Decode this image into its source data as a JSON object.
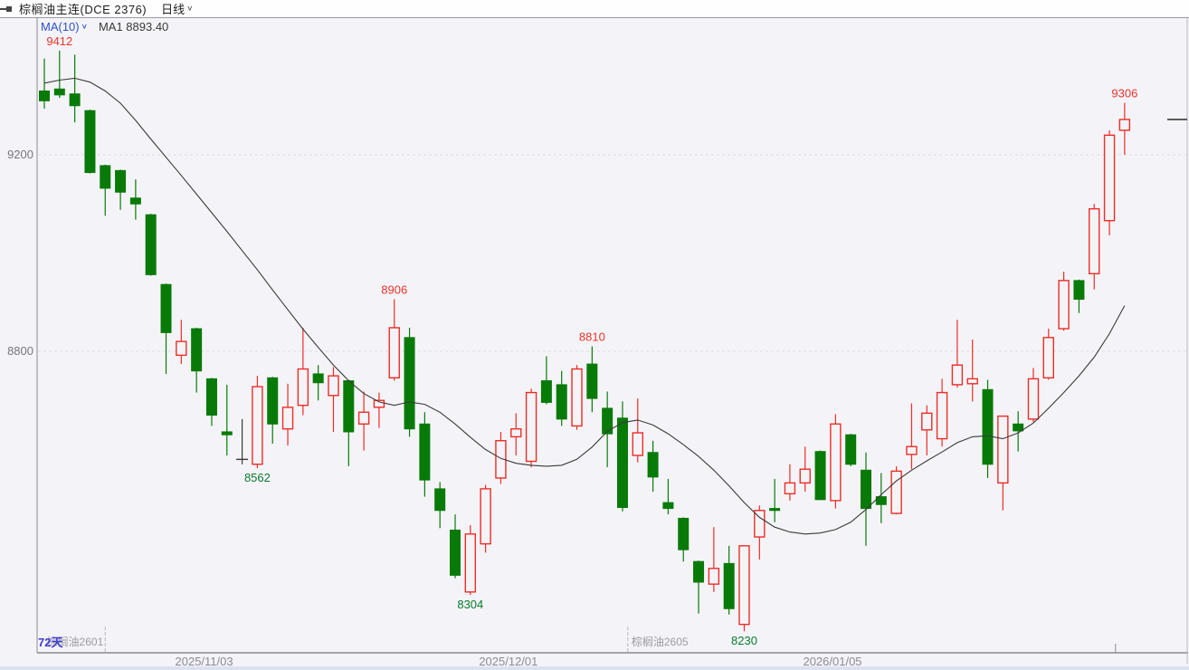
{
  "header": {
    "instrument_title": "棕榈油主连(DCE 2376)",
    "period_label": "日线",
    "chevron_glyph": "∨"
  },
  "legend": {
    "ma_name": "MA(10)",
    "ma_value_label": "MA1 8893.40"
  },
  "y_axis": {
    "labels": [
      {
        "text": "9200",
        "price": 9200
      },
      {
        "text": "8800",
        "price": 8800
      }
    ]
  },
  "x_axis": {
    "dates": [
      {
        "label": "2025/11/03",
        "index": 10.5
      },
      {
        "label": "2025/12/01",
        "index": 30.5
      },
      {
        "label": "2026/01/05",
        "index": 51.8
      }
    ],
    "minor_tick_index": 70.4
  },
  "annotations": {
    "duration_label": "72天",
    "contract_markers": [
      {
        "label": "棕榈油2601",
        "index": 4.0,
        "side": "left"
      },
      {
        "label": "棕榈油2605",
        "index": 38.35,
        "side": "right"
      }
    ],
    "extreme_labels": [
      {
        "text": "9412",
        "candle": 1,
        "side": "above"
      },
      {
        "text": "8562",
        "candle": 14,
        "side": "below"
      },
      {
        "text": "8906",
        "candle": 23,
        "side": "above"
      },
      {
        "text": "8304",
        "candle": 28,
        "side": "below"
      },
      {
        "text": "8810",
        "candle": 36,
        "side": "above"
      },
      {
        "text": "8230",
        "candle": 46,
        "side": "below"
      },
      {
        "text": "9306",
        "candle": 71,
        "side": "above"
      }
    ]
  },
  "colors": {
    "up": "#ee2c26",
    "down": "#087a08",
    "neutral": "#3a3a3a",
    "ma_line": "#3a3a3a",
    "label_up": "#e8342a",
    "label_down": "#0a7a2a",
    "grid": "#dcdce2",
    "axis": "#8a8a92",
    "tick_text": "#75757d",
    "contract_text": "#9a9aa0",
    "duration_text": "#3c3ccc",
    "background": "#f4f4f8",
    "last_price_dash": "#3a3a3a"
  },
  "chart_data": {
    "type": "candlestick",
    "title": "棕榈油主连(DCE 2376) 日线",
    "period": "daily",
    "visible_days": 72,
    "ylim": [
      8186,
      9478
    ],
    "grid": "dashed horizontal at 9200 and 8800",
    "legend_position": "top-left",
    "ma": {
      "name": "MA(10)",
      "current_display": "8893.40"
    },
    "ohlc": [
      [
        9330,
        9396,
        9294,
        9310
      ],
      [
        9334,
        9412,
        9316,
        9322
      ],
      [
        9324,
        9404,
        9266,
        9300
      ],
      [
        9290,
        9292,
        9162,
        9164
      ],
      [
        9178,
        9180,
        9076,
        9132
      ],
      [
        9168,
        9170,
        9088,
        9124
      ],
      [
        9112,
        9150,
        9068,
        9100
      ],
      [
        9078,
        9080,
        8954,
        8956
      ],
      [
        8936,
        8938,
        8754,
        8838
      ],
      [
        8792,
        8864,
        8774,
        8820
      ],
      [
        8846,
        8848,
        8716,
        8760
      ],
      [
        8744,
        8746,
        8648,
        8670
      ],
      [
        8636,
        8732,
        8588,
        8630
      ],
      [
        8580,
        8662,
        8570,
        8580
      ],
      [
        8570,
        8750,
        8562,
        8728
      ],
      [
        8746,
        8748,
        8612,
        8652
      ],
      [
        8642,
        8734,
        8608,
        8686
      ],
      [
        8690,
        8848,
        8670,
        8764
      ],
      [
        8754,
        8772,
        8700,
        8736
      ],
      [
        8710,
        8768,
        8636,
        8750
      ],
      [
        8740,
        8742,
        8566,
        8636
      ],
      [
        8652,
        8718,
        8598,
        8676
      ],
      [
        8686,
        8716,
        8644,
        8700
      ],
      [
        8746,
        8906,
        8740,
        8848
      ],
      [
        8828,
        8848,
        8626,
        8642
      ],
      [
        8652,
        8676,
        8504,
        8538
      ],
      [
        8520,
        8534,
        8440,
        8476
      ],
      [
        8436,
        8468,
        8338,
        8344
      ],
      [
        8310,
        8446,
        8304,
        8428
      ],
      [
        8408,
        8528,
        8390,
        8520
      ],
      [
        8542,
        8636,
        8530,
        8618
      ],
      [
        8626,
        8674,
        8588,
        8642
      ],
      [
        8576,
        8724,
        8564,
        8716
      ],
      [
        8740,
        8790,
        8692,
        8696
      ],
      [
        8732,
        8760,
        8648,
        8662
      ],
      [
        8648,
        8772,
        8640,
        8764
      ],
      [
        8774,
        8810,
        8676,
        8704
      ],
      [
        8684,
        8718,
        8564,
        8632
      ],
      [
        8664,
        8698,
        8474,
        8482
      ],
      [
        8588,
        8704,
        8574,
        8634
      ],
      [
        8594,
        8618,
        8514,
        8544
      ],
      [
        8492,
        8540,
        8468,
        8480
      ],
      [
        8460,
        8462,
        8372,
        8396
      ],
      [
        8372,
        8374,
        8266,
        8330
      ],
      [
        8326,
        8442,
        8310,
        8358
      ],
      [
        8368,
        8404,
        8264,
        8276
      ],
      [
        8244,
        8404,
        8230,
        8404
      ],
      [
        8422,
        8486,
        8376,
        8476
      ],
      [
        8480,
        8540,
        8452,
        8476
      ],
      [
        8510,
        8570,
        8496,
        8532
      ],
      [
        8532,
        8606,
        8514,
        8560
      ],
      [
        8596,
        8598,
        8498,
        8498
      ],
      [
        8496,
        8672,
        8480,
        8652
      ],
      [
        8630,
        8632,
        8566,
        8570
      ],
      [
        8558,
        8594,
        8404,
        8480
      ],
      [
        8504,
        8552,
        8450,
        8488
      ],
      [
        8470,
        8566,
        8468,
        8556
      ],
      [
        8590,
        8694,
        8560,
        8606
      ],
      [
        8640,
        8690,
        8588,
        8674
      ],
      [
        8622,
        8744,
        8606,
        8716
      ],
      [
        8732,
        8864,
        8726,
        8772
      ],
      [
        8734,
        8824,
        8698,
        8744
      ],
      [
        8722,
        8742,
        8542,
        8570
      ],
      [
        8532,
        8668,
        8476,
        8668
      ],
      [
        8652,
        8678,
        8596,
        8638
      ],
      [
        8662,
        8766,
        8656,
        8744
      ],
      [
        8746,
        8846,
        8742,
        8828
      ],
      [
        8846,
        8962,
        8842,
        8944
      ],
      [
        8944,
        8946,
        8878,
        8906
      ],
      [
        8958,
        9100,
        8926,
        9090
      ],
      [
        9066,
        9250,
        9036,
        9240
      ],
      [
        9250,
        9306,
        9200,
        9272
      ]
    ],
    "neutral_indices": [
      13
    ],
    "ma_values": [
      9346,
      9352,
      9356,
      9348,
      9330,
      9305,
      9270,
      9232,
      9195,
      9158,
      9120,
      9082,
      9044,
      9005,
      8966,
      8925,
      8885,
      8845,
      8808,
      8772,
      8740,
      8714,
      8697,
      8690,
      8697,
      8692,
      8676,
      8652,
      8625,
      8600,
      8582,
      8572,
      8568,
      8566,
      8568,
      8580,
      8605,
      8637,
      8655,
      8660,
      8650,
      8632,
      8610,
      8586,
      8558,
      8526,
      8492,
      8462,
      8442,
      8432,
      8428,
      8430,
      8437,
      8452,
      8478,
      8508,
      8536,
      8558,
      8577,
      8595,
      8614,
      8626,
      8628,
      8622,
      8634,
      8654,
      8684,
      8716,
      8750,
      8788,
      8836,
      8893
    ],
    "last_close": 9272
  }
}
